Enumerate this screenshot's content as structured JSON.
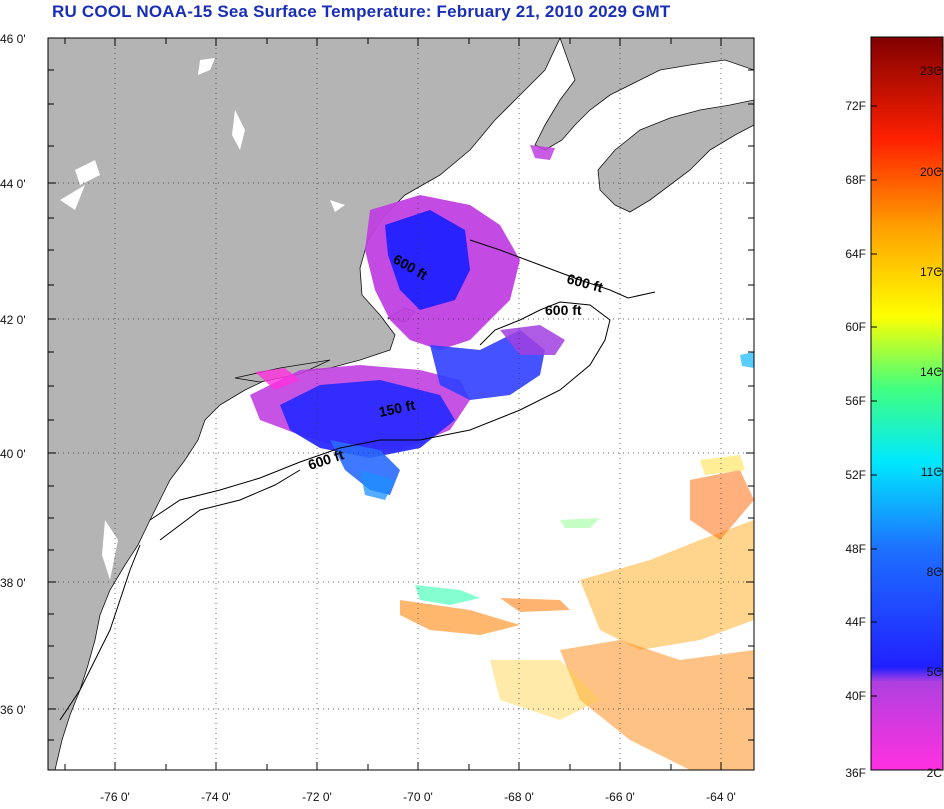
{
  "title": "RU COOL  NOAA-15  Sea Surface Temperature:  February 21, 2010 2029 GMT",
  "lat_labels": [
    "46 0'",
    "44 0'",
    "42 0'",
    "40 0'",
    "38 0'",
    "36 0'"
  ],
  "lon_labels": [
    "-76 0'",
    "-74 0'",
    "-72 0'",
    "-70 0'",
    "-68 0'",
    "-66 0'",
    "-64 0'"
  ],
  "contour_labels": [
    "600 ft",
    "600 ft",
    "600 ft",
    "150 ft",
    "600 ft"
  ],
  "colorbar": {
    "fahrenheit_labels": [
      "72F",
      "68F",
      "64F",
      "60F",
      "56F",
      "52F",
      "48F",
      "44F",
      "40F",
      "36F"
    ],
    "celsius_labels": [
      "23C",
      "20C",
      "17C",
      "14C",
      "11C",
      "8C",
      "5C",
      "2C"
    ]
  },
  "colors": {
    "land": "#b4b4b4",
    "title": "#1a2fb8",
    "colorbar_stops": [
      "#ff30e0",
      "#b040e0",
      "#3030ff",
      "#1e6fff",
      "#00ffff",
      "#40ff80",
      "#ffff00",
      "#ffa000",
      "#ff4000",
      "#d00000",
      "#800000"
    ]
  }
}
